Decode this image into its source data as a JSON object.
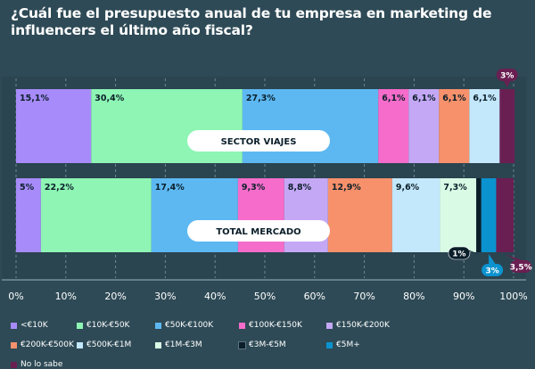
{
  "title": "¿Cuál fue el presupuesto anual de tu empresa en marketing de influencers el último año fiscal?",
  "chart_data": {
    "type": "bar",
    "orientation": "horizontal-stacked",
    "xlim": [
      0,
      100
    ],
    "ticks": [
      "0%",
      "10%",
      "20%",
      "30%",
      "40%",
      "50%",
      "60%",
      "70%",
      "80%",
      "90%",
      "100%"
    ],
    "categories": [
      {
        "name": "<€10K",
        "color": "#a78bfa"
      },
      {
        "name": "€10K-€50K",
        "color": "#8ef5b4"
      },
      {
        "name": "€50K-€100K",
        "color": "#5db8f2"
      },
      {
        "name": "€100K-€150K",
        "color": "#f56ccb"
      },
      {
        "name": "€150K-€200K",
        "color": "#c4a8f5"
      },
      {
        "name": "€200K-€500K",
        "color": "#f7916b"
      },
      {
        "name": "€500K-€1M",
        "color": "#c3e7fb"
      },
      {
        "name": "€1M-€3M",
        "color": "#d9fbe5"
      },
      {
        "name": "€3M-€5M",
        "color": "#0b1f2a"
      },
      {
        "name": "€5M+",
        "color": "#0b93cf"
      },
      {
        "name": "No lo sabe",
        "color": "#6a1f52"
      }
    ],
    "series": [
      {
        "name": "SECTOR VIAJES",
        "values": [
          15.1,
          30.4,
          27.3,
          6.1,
          6.1,
          6.1,
          6.1,
          0,
          0,
          0,
          3
        ],
        "labels": [
          "15,1%",
          "30,4%",
          "27,3%",
          "6,1%",
          "6,1%",
          "6,1%",
          "6,1%",
          "",
          "",
          "",
          ""
        ],
        "callouts": [
          {
            "category": 10,
            "text": "3%"
          }
        ]
      },
      {
        "name": "TOTAL MERCADO",
        "values": [
          5,
          22.2,
          17.4,
          9.3,
          8.8,
          12.9,
          9.6,
          7.3,
          1,
          3,
          3.5
        ],
        "labels": [
          "5%",
          "22,2%",
          "17,4%",
          "9,3%",
          "8,8%",
          "12,9%",
          "9,6%",
          "7,3%",
          "",
          "",
          ""
        ],
        "callouts": [
          {
            "category": 8,
            "text": "1%"
          },
          {
            "category": 9,
            "text": "3%"
          },
          {
            "category": 10,
            "text": "3,5%"
          }
        ]
      }
    ]
  }
}
